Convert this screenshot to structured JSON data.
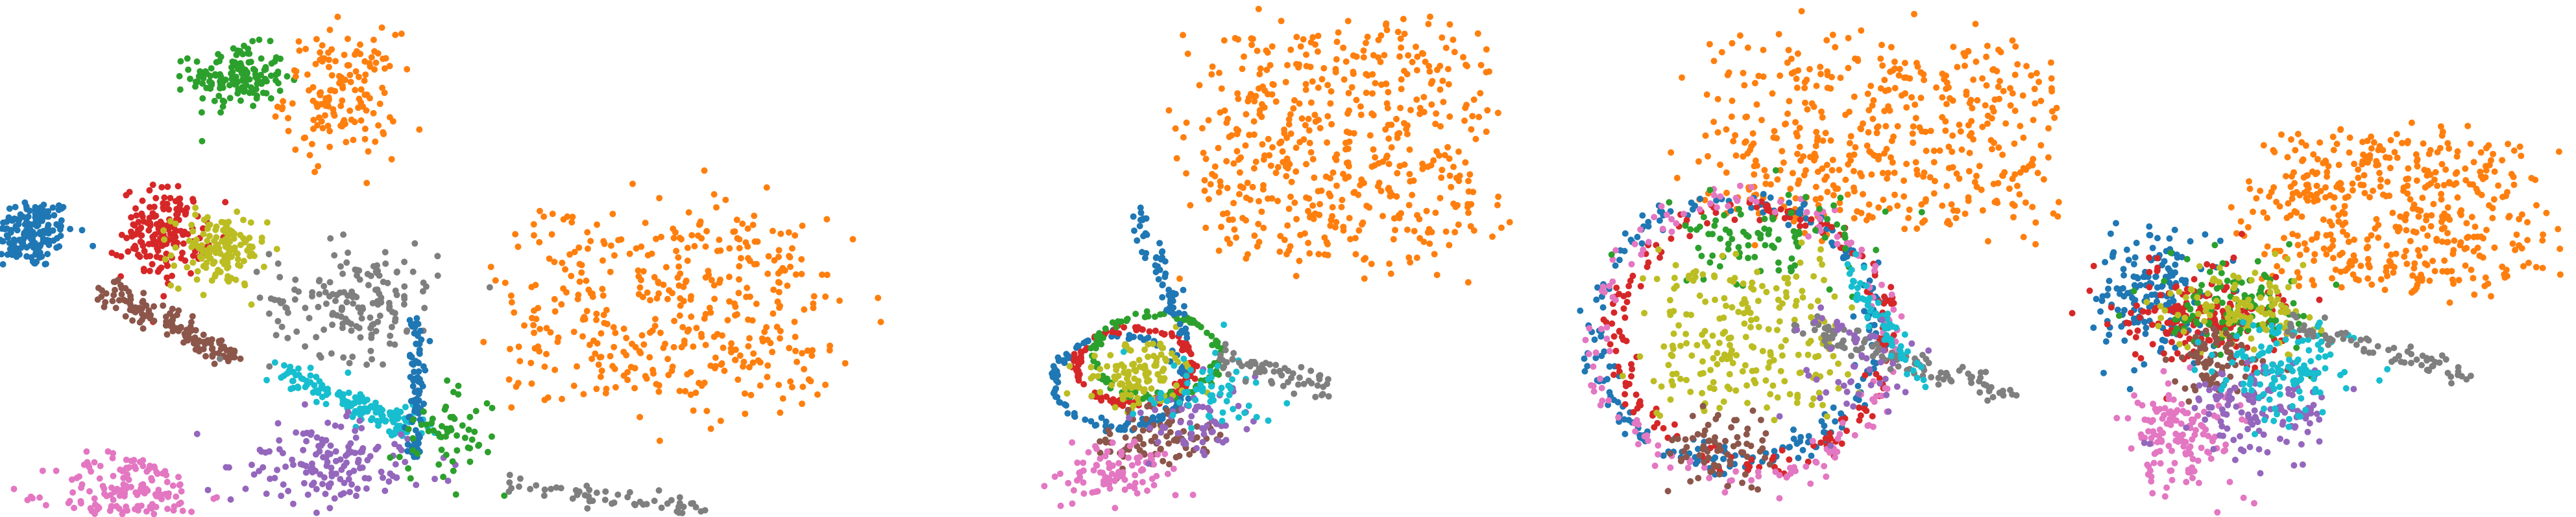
{
  "chart_data": [
    {
      "type": "scatter",
      "panel": 1,
      "title": "",
      "xlabel": "",
      "ylabel": "",
      "grid": false,
      "legend": "none",
      "clusters": [
        {
          "color": "#1f77b4",
          "center": [
            -3.7,
            5.5
          ],
          "spread": [
            0.25,
            0.35
          ],
          "count": 170,
          "shape": "blob"
        },
        {
          "color": "#2ca02c",
          "center": [
            -1.45,
            8.55
          ],
          "spread": [
            0.25,
            0.3
          ],
          "count": 150,
          "shape": "blob"
        },
        {
          "color": "#ff7f0e",
          "center": [
            -0.35,
            8.2
          ],
          "spread": [
            0.3,
            0.6
          ],
          "count": 150,
          "shape": "blob"
        },
        {
          "color": "#d62728",
          "center": [
            -2.25,
            5.5
          ],
          "spread": [
            0.22,
            0.45
          ],
          "count": 170,
          "shape": "blob"
        },
        {
          "color": "#bcbd22",
          "center": [
            -1.65,
            5.15
          ],
          "spread": [
            0.25,
            0.35
          ],
          "count": 140,
          "shape": "blob"
        },
        {
          "color": "#8c564b",
          "center": [
            -2.15,
            3.7
          ],
          "spread": [
            0.5,
            0.5
          ],
          "count": 140,
          "shape": "band"
        },
        {
          "color": "#e377c2",
          "center": [
            -2.6,
            0.4
          ],
          "spread": [
            0.4,
            0.4
          ],
          "count": 160,
          "shape": "blob"
        },
        {
          "color": "#7f7f7f",
          "center": [
            -0.2,
            4.2
          ],
          "spread": [
            0.45,
            0.55
          ],
          "count": 160,
          "shape": "blob"
        },
        {
          "color": "#17becf",
          "center": [
            -0.25,
            2.2
          ],
          "spread": [
            0.55,
            0.45
          ],
          "count": 150,
          "shape": "band"
        },
        {
          "color": "#9467bd",
          "center": [
            -0.45,
            1.0
          ],
          "spread": [
            0.5,
            0.4
          ],
          "count": 150,
          "shape": "blob"
        },
        {
          "color": "#1f77b4",
          "center": [
            0.45,
            2.5
          ],
          "spread": [
            0.04,
            1.4
          ],
          "count": 90,
          "shape": "line"
        },
        {
          "color": "#ff7f0e",
          "center": [
            3.1,
            4.0
          ],
          "spread": [
            1.2,
            1.4
          ],
          "count": 420,
          "shape": "diffuse"
        },
        {
          "color": "#2ca02c",
          "center": [
            0.8,
            1.6
          ],
          "spread": [
            0.25,
            0.4
          ],
          "count": 60,
          "shape": "blob"
        },
        {
          "color": "#7f7f7f",
          "center": [
            2.3,
            0.35
          ],
          "spread": [
            0.9,
            0.2
          ],
          "count": 60,
          "shape": "band"
        }
      ],
      "xlim": [
        -4,
        6
      ],
      "ylim": [
        0,
        10
      ]
    },
    {
      "type": "scatter",
      "panel": 2,
      "title": "",
      "xlabel": "",
      "ylabel": "",
      "grid": false,
      "legend": "none",
      "clusters": [
        {
          "color": "#ff7f0e",
          "center": [
            1.2,
            7.2
          ],
          "spread": [
            1.4,
            1.6
          ],
          "count": 520,
          "shape": "diffuse"
        },
        {
          "color": "#1f77b4",
          "center": [
            -1.8,
            2.6
          ],
          "spread": [
            0.9,
            0.9
          ],
          "count": 130,
          "shape": "ring"
        },
        {
          "color": "#d62728",
          "center": [
            -1.6,
            2.9
          ],
          "spread": [
            0.8,
            0.75
          ],
          "count": 130,
          "shape": "ring"
        },
        {
          "color": "#2ca02c",
          "center": [
            -1.3,
            3.1
          ],
          "spread": [
            0.85,
            0.8
          ],
          "count": 100,
          "shape": "ring"
        },
        {
          "color": "#bcbd22",
          "center": [
            -1.55,
            2.75
          ],
          "spread": [
            0.35,
            0.3
          ],
          "count": 110,
          "shape": "blob"
        },
        {
          "color": "#8c564b",
          "center": [
            -1.3,
            1.5
          ],
          "spread": [
            0.4,
            0.3
          ],
          "count": 80,
          "shape": "blob"
        },
        {
          "color": "#e377c2",
          "center": [
            -1.9,
            0.8
          ],
          "spread": [
            0.4,
            0.3
          ],
          "count": 90,
          "shape": "blob"
        },
        {
          "color": "#9467bd",
          "center": [
            -0.8,
            1.8
          ],
          "spread": [
            0.35,
            0.35
          ],
          "count": 60,
          "shape": "blob"
        },
        {
          "color": "#17becf",
          "center": [
            -0.6,
            2.4
          ],
          "spread": [
            0.4,
            0.4
          ],
          "count": 60,
          "shape": "blob"
        },
        {
          "color": "#7f7f7f",
          "center": [
            0.3,
            2.8
          ],
          "spread": [
            0.6,
            0.25
          ],
          "count": 60,
          "shape": "band"
        },
        {
          "color": "#1f77b4",
          "center": [
            -1.2,
            4.6
          ],
          "spread": [
            0.25,
            0.9
          ],
          "count": 60,
          "shape": "band"
        }
      ],
      "xlim": [
        -3,
        4
      ],
      "ylim": [
        0,
        10
      ]
    },
    {
      "type": "scatter",
      "panel": 3,
      "title": "",
      "xlabel": "",
      "ylabel": "",
      "grid": false,
      "legend": "none",
      "clusters": [
        {
          "color": "#ff7f0e",
          "center": [
            1.0,
            7.4
          ],
          "spread": [
            1.5,
            1.3
          ],
          "count": 480,
          "shape": "diffuse"
        },
        {
          "color": "#1f77b4",
          "center": [
            -0.8,
            3.6
          ],
          "spread": [
            1.65,
            2.6
          ],
          "count": 220,
          "shape": "ring"
        },
        {
          "color": "#d62728",
          "center": [
            -0.6,
            3.5
          ],
          "spread": [
            1.55,
            2.5
          ],
          "count": 180,
          "shape": "ring"
        },
        {
          "color": "#e377c2",
          "center": [
            -0.7,
            3.4
          ],
          "spread": [
            1.7,
            2.75
          ],
          "count": 160,
          "shape": "ring"
        },
        {
          "color": "#2ca02c",
          "center": [
            -0.4,
            5.4
          ],
          "spread": [
            0.6,
            0.5
          ],
          "count": 90,
          "shape": "blob"
        },
        {
          "color": "#bcbd22",
          "center": [
            -0.7,
            3.6
          ],
          "spread": [
            0.8,
            1.1
          ],
          "count": 220,
          "shape": "diffuse"
        },
        {
          "color": "#8c564b",
          "center": [
            -1.0,
            1.3
          ],
          "spread": [
            0.3,
            0.4
          ],
          "count": 70,
          "shape": "blob"
        },
        {
          "color": "#7f7f7f",
          "center": [
            1.2,
            3.0
          ],
          "spread": [
            0.9,
            0.5
          ],
          "count": 110,
          "shape": "band"
        },
        {
          "color": "#17becf",
          "center": [
            0.9,
            3.8
          ],
          "spread": [
            0.3,
            0.8
          ],
          "count": 60,
          "shape": "band"
        },
        {
          "color": "#9467bd",
          "center": [
            0.6,
            3.0
          ],
          "spread": [
            0.4,
            0.6
          ],
          "count": 50,
          "shape": "blob"
        }
      ],
      "xlim": [
        -3,
        3
      ],
      "ylim": [
        0,
        10
      ]
    },
    {
      "type": "scatter",
      "panel": 4,
      "title": "",
      "xlabel": "",
      "ylabel": "",
      "grid": false,
      "legend": "none",
      "clusters": [
        {
          "color": "#ff7f0e",
          "center": [
            1.6,
            6.0
          ],
          "spread": [
            1.3,
            1.1
          ],
          "count": 460,
          "shape": "diffuse"
        },
        {
          "color": "#1f77b4",
          "center": [
            -1.7,
            4.3
          ],
          "spread": [
            0.35,
            0.6
          ],
          "count": 170,
          "shape": "blob"
        },
        {
          "color": "#d62728",
          "center": [
            -1.0,
            3.9
          ],
          "spread": [
            0.55,
            0.5
          ],
          "count": 170,
          "shape": "blob"
        },
        {
          "color": "#2ca02c",
          "center": [
            -0.6,
            4.1
          ],
          "spread": [
            0.55,
            0.45
          ],
          "count": 110,
          "shape": "blob"
        },
        {
          "color": "#bcbd22",
          "center": [
            -0.45,
            4.0
          ],
          "spread": [
            0.5,
            0.4
          ],
          "count": 110,
          "shape": "blob"
        },
        {
          "color": "#e377c2",
          "center": [
            -1.3,
            1.6
          ],
          "spread": [
            0.4,
            0.55
          ],
          "count": 140,
          "shape": "blob"
        },
        {
          "color": "#8c564b",
          "center": [
            -0.8,
            2.9
          ],
          "spread": [
            0.35,
            0.35
          ],
          "count": 80,
          "shape": "blob"
        },
        {
          "color": "#9467bd",
          "center": [
            -0.2,
            2.1
          ],
          "spread": [
            0.5,
            0.45
          ],
          "count": 130,
          "shape": "blob"
        },
        {
          "color": "#17becf",
          "center": [
            0.1,
            2.8
          ],
          "spread": [
            0.45,
            0.5
          ],
          "count": 130,
          "shape": "blob"
        },
        {
          "color": "#7f7f7f",
          "center": [
            1.4,
            3.2
          ],
          "spread": [
            0.9,
            0.35
          ],
          "count": 70,
          "shape": "band"
        }
      ],
      "xlim": [
        -3,
        4
      ],
      "ylim": [
        0,
        10
      ]
    }
  ]
}
